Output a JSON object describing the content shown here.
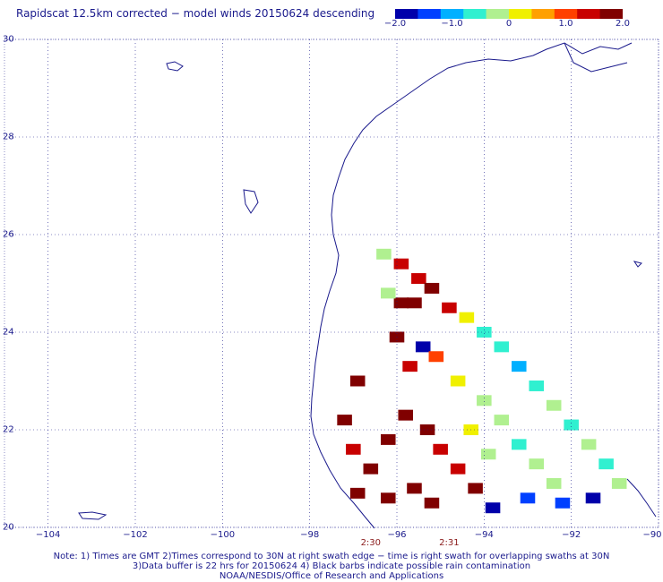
{
  "title": "Rapidscat 12.5km corrected − model winds 20150624 descending",
  "colorbar": {
    "colors": [
      "#0000aa",
      "#0040ff",
      "#00b0ff",
      "#30f0d0",
      "#b0f090",
      "#f0f000",
      "#ffa000",
      "#ff4000",
      "#c80000",
      "#800000"
    ],
    "ticks": [
      {
        "label": "−2.0",
        "value": -2.0
      },
      {
        "label": "−1.0",
        "value": -1.0
      },
      {
        "label": "0",
        "value": 0
      },
      {
        "label": "1.0",
        "value": 1.0
      },
      {
        "label": "2.0",
        "value": 2.0
      }
    ]
  },
  "map": {
    "lon_range": [
      -105,
      -90
    ],
    "lat_range": [
      20,
      30
    ],
    "lat_labels": [
      {
        "label": "30",
        "value": 30
      },
      {
        "label": "28",
        "value": 28
      },
      {
        "label": "26",
        "value": 26
      },
      {
        "label": "24",
        "value": 24
      },
      {
        "label": "22",
        "value": 22
      },
      {
        "label": "20",
        "value": 20
      }
    ],
    "lon_labels": [
      {
        "label": "−104",
        "value": -104
      },
      {
        "label": "−102",
        "value": -102
      },
      {
        "label": "−100",
        "value": -100
      },
      {
        "label": "−98",
        "value": -98
      },
      {
        "label": "−96",
        "value": -96
      },
      {
        "label": "−94",
        "value": -94
      },
      {
        "label": "−92",
        "value": -92
      },
      {
        "label": "−90",
        "value": -90
      }
    ],
    "coast_color": "#1a1a8c",
    "grid": "dotted"
  },
  "times": [
    {
      "label": "2:30",
      "lon": -96.6
    },
    {
      "label": "2:31",
      "lon": -94.8
    }
  ],
  "swath_cells": [
    {
      "lon": -96.3,
      "lat": 25.6,
      "v": -0.3
    },
    {
      "lon": -95.9,
      "lat": 25.4,
      "v": 1.5
    },
    {
      "lon": -95.5,
      "lat": 25.1,
      "v": 1.4
    },
    {
      "lon": -95.2,
      "lat": 24.9,
      "v": 1.6
    },
    {
      "lon": -95.9,
      "lat": 24.6,
      "v": 2.0
    },
    {
      "lon": -95.6,
      "lat": 24.6,
      "v": 2.0
    },
    {
      "lon": -96.2,
      "lat": 24.8,
      "v": -0.2
    },
    {
      "lon": -94.8,
      "lat": 24.5,
      "v": 1.2
    },
    {
      "lon": -94.4,
      "lat": 24.3,
      "v": 0.3
    },
    {
      "lon": -94.0,
      "lat": 24.0,
      "v": -0.6
    },
    {
      "lon": -93.6,
      "lat": 23.7,
      "v": -0.5
    },
    {
      "lon": -93.2,
      "lat": 23.3,
      "v": -0.9
    },
    {
      "lon": -92.8,
      "lat": 22.9,
      "v": -0.6
    },
    {
      "lon": -92.4,
      "lat": 22.5,
      "v": -0.4
    },
    {
      "lon": -92.0,
      "lat": 22.1,
      "v": -0.5
    },
    {
      "lon": -91.6,
      "lat": 21.7,
      "v": -0.3
    },
    {
      "lon": -91.2,
      "lat": 21.3,
      "v": -0.6
    },
    {
      "lon": -90.9,
      "lat": 20.9,
      "v": -0.2
    },
    {
      "lon": -91.5,
      "lat": 20.6,
      "v": -1.6
    },
    {
      "lon": -92.2,
      "lat": 20.5,
      "v": -1.5
    },
    {
      "lon": -93.0,
      "lat": 20.6,
      "v": -1.4
    },
    {
      "lon": -93.8,
      "lat": 20.4,
      "v": -1.8
    },
    {
      "lon": -94.2,
      "lat": 20.8,
      "v": 2.0
    },
    {
      "lon": -94.6,
      "lat": 21.2,
      "v": 1.5
    },
    {
      "lon": -95.0,
      "lat": 21.6,
      "v": 1.3
    },
    {
      "lon": -95.3,
      "lat": 22.0,
      "v": 1.8
    },
    {
      "lon": -95.8,
      "lat": 22.3,
      "v": 2.0
    },
    {
      "lon": -96.2,
      "lat": 21.8,
      "v": 2.0
    },
    {
      "lon": -96.6,
      "lat": 21.2,
      "v": 2.0
    },
    {
      "lon": -96.9,
      "lat": 20.7,
      "v": 1.6
    },
    {
      "lon": -96.2,
      "lat": 20.6,
      "v": 2.0
    },
    {
      "lon": -95.6,
      "lat": 20.8,
      "v": 2.0
    },
    {
      "lon": -95.2,
      "lat": 20.5,
      "v": 1.7
    },
    {
      "lon": -97.0,
      "lat": 21.6,
      "v": 1.2
    },
    {
      "lon": -97.2,
      "lat": 22.2,
      "v": 2.0
    },
    {
      "lon": -96.9,
      "lat": 23.0,
      "v": 2.0
    },
    {
      "lon": -94.6,
      "lat": 23.0,
      "v": 0.2
    },
    {
      "lon": -94.0,
      "lat": 22.6,
      "v": -0.3
    },
    {
      "lon": -93.6,
      "lat": 22.2,
      "v": -0.2
    },
    {
      "lon": -93.2,
      "lat": 21.7,
      "v": -0.5
    },
    {
      "lon": -92.8,
      "lat": 21.3,
      "v": -0.4
    },
    {
      "lon": -92.4,
      "lat": 20.9,
      "v": -0.3
    },
    {
      "lon": -93.9,
      "lat": 21.5,
      "v": -0.1
    },
    {
      "lon": -94.3,
      "lat": 22.0,
      "v": 0.0
    },
    {
      "lon": -95.4,
      "lat": 23.7,
      "v": -1.9
    },
    {
      "lon": -95.7,
      "lat": 23.3,
      "v": 1.3
    },
    {
      "lon": -96.0,
      "lat": 23.9,
      "v": 1.7
    },
    {
      "lon": -95.1,
      "lat": 23.5,
      "v": 0.8
    }
  ],
  "notes": [
    "Note: 1) Times are GMT 2)Times correspond to 30N at right swath edge − time is right swath for overlapping swaths at 30N",
    "3)Data buffer is 22 hrs for 20150624 4) Black barbs indicate possible rain contamination",
    "NOAA/NESDIS/Office of Research and Applications"
  ]
}
